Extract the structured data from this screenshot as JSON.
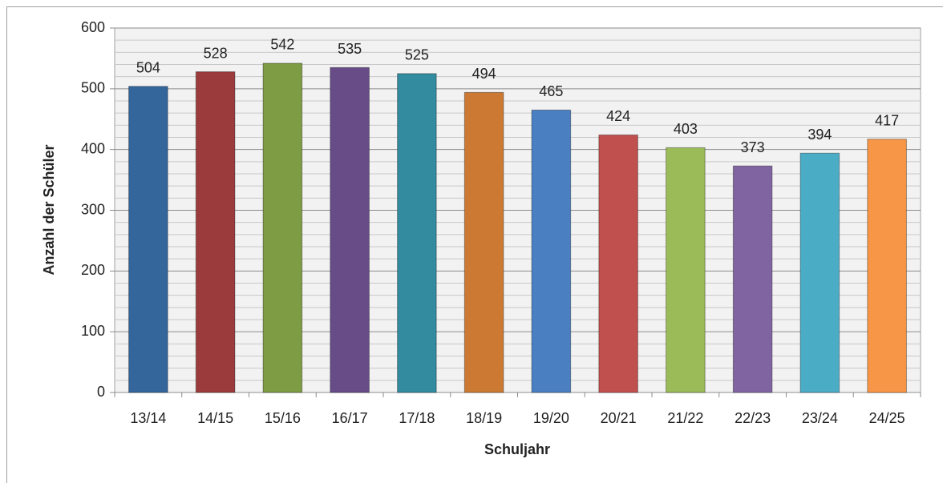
{
  "chart_data": {
    "type": "bar",
    "categories": [
      "13/14",
      "14/15",
      "15/16",
      "16/17",
      "17/18",
      "18/19",
      "19/20",
      "20/21",
      "21/22",
      "22/23",
      "23/24",
      "24/25"
    ],
    "values": [
      504,
      528,
      542,
      535,
      525,
      494,
      465,
      424,
      403,
      373,
      394,
      417
    ],
    "colors": [
      "#34659b",
      "#9c3b3b",
      "#7d9c43",
      "#674c87",
      "#328b9e",
      "#cc7a33",
      "#4a7fc1",
      "#c0504d",
      "#9bbb59",
      "#8064a2",
      "#4bacc6",
      "#f79646"
    ],
    "xlabel": "Schuljahr",
    "ylabel": "Anzahl der Schüler",
    "ylim": [
      0,
      600
    ],
    "yticks": [
      0,
      100,
      200,
      300,
      400,
      500,
      600
    ],
    "minor_yticks": [
      20,
      40,
      60,
      80,
      120,
      140,
      160,
      180,
      220,
      240,
      260,
      280,
      320,
      340,
      360,
      380,
      420,
      440,
      460,
      480,
      520,
      540,
      560,
      580
    ],
    "grid": true
  }
}
